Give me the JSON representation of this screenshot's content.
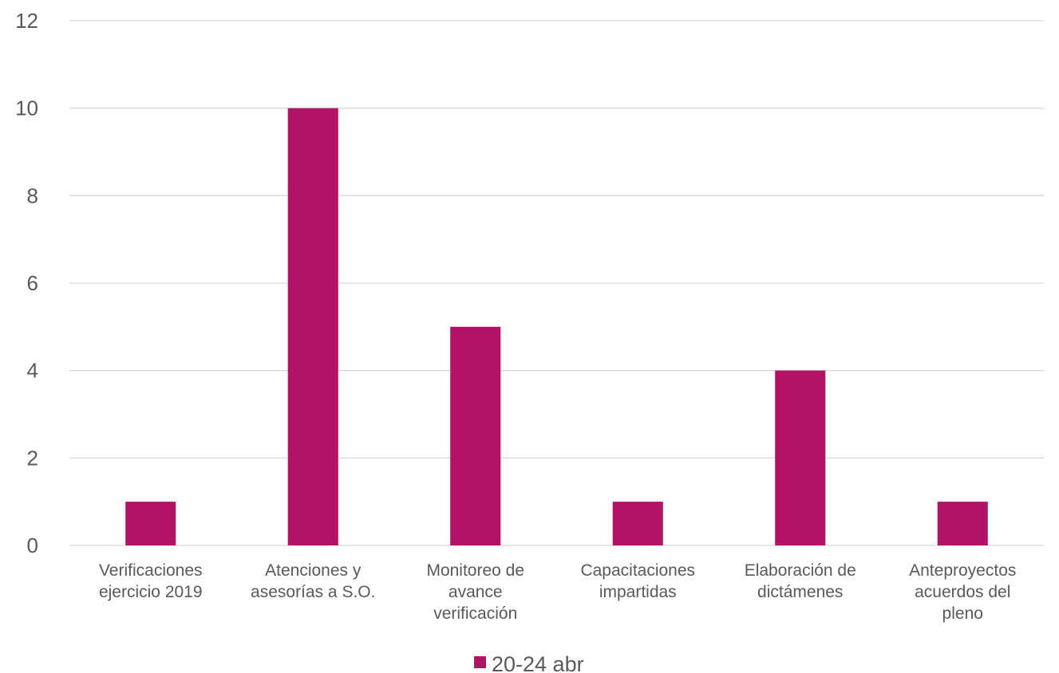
{
  "chart_data": {
    "type": "bar",
    "title": "",
    "xlabel": "",
    "ylabel": "",
    "ylim": [
      0,
      12
    ],
    "yticks": [
      0,
      2,
      4,
      6,
      8,
      10,
      12
    ],
    "grid": true,
    "legend_position": "bottom",
    "categories": [
      [
        "Verificaciones",
        "ejercicio 2019"
      ],
      [
        "Atenciones y",
        "asesorías a S.O."
      ],
      [
        "Monitoreo de",
        "avance",
        "verificación"
      ],
      [
        "Capacitaciones",
        "impartidas"
      ],
      [
        "Elaboración de",
        "dictámenes"
      ],
      [
        "Anteproyectos",
        "acuerdos del",
        "pleno"
      ]
    ],
    "series": [
      {
        "name": "20-24 abr",
        "color": "#b31366",
        "values": [
          1,
          10,
          5,
          1,
          4,
          1
        ]
      }
    ]
  }
}
